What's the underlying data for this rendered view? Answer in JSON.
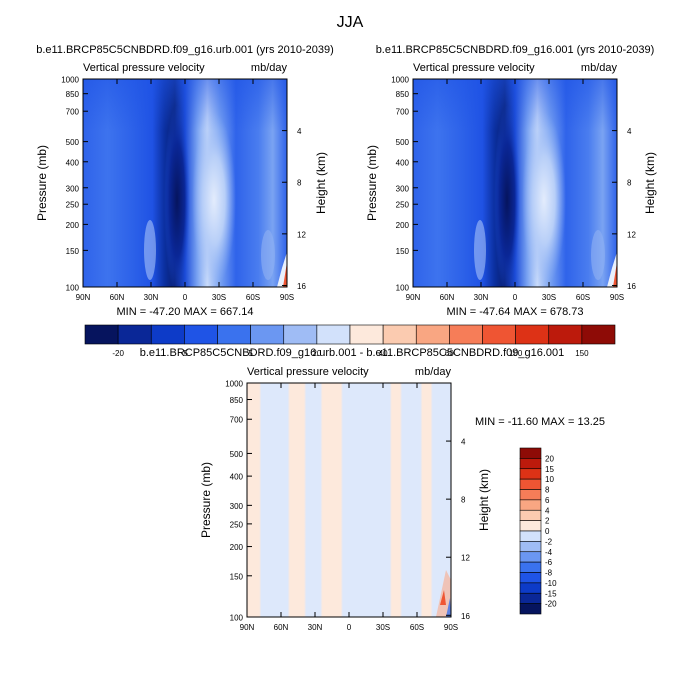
{
  "figure_title": "JJA",
  "panels": [
    {
      "title": "b.e11.BRCP85C5CNBDRD.f09_g16.urb.001 (yrs 2010-2039)",
      "left_string": "Vertical pressure velocity",
      "right_string": "mb/day",
      "stats": "MIN = -47.20  MAX = 667.14"
    },
    {
      "title": "b.e11.BRCP85C5CNBDRD.f09_g16.001 (yrs 2010-2039)",
      "left_string": "Vertical pressure velocity",
      "right_string": "mb/day",
      "stats": "MIN = -47.64  MAX = 678.73"
    },
    {
      "title": "b.e11.BRCP85C5CNBDRD.f09_g16.urb.001 - b.e11.BRCP85C5CNBDRD.f09_g16.001",
      "left_string": "Vertical pressure velocity",
      "right_string": "mb/day",
      "stats": "MIN = -11.60  MAX =  13.25"
    }
  ],
  "axes": {
    "ylabel": "Pressure (mb)",
    "ylabel_right": "Height (km)",
    "y_ticks": [
      100,
      150,
      200,
      250,
      300,
      400,
      500,
      700,
      850,
      1000
    ],
    "y_tick_labels": [
      "100",
      "150",
      "200",
      "250",
      "300",
      "400",
      "500",
      "700",
      "850",
      "1000"
    ],
    "x_tick_labels": [
      "90N",
      "60N",
      "30N",
      "0",
      "30S",
      "60S",
      "90S"
    ],
    "height_ticks": [
      4,
      8,
      12,
      16
    ],
    "height_tick_labels": [
      "4",
      "8",
      "12",
      "16"
    ]
  },
  "colorbar_top": {
    "labels": [
      "-20",
      "-5",
      "5",
      "20",
      "40",
      "60",
      "100",
      "150"
    ],
    "colors": [
      "#06145e",
      "#0a2797",
      "#0d3bc8",
      "#1f54e6",
      "#3a72ee",
      "#6b97f2",
      "#9fbcf5",
      "#d2e1fb",
      "#fde9dc",
      "#fbcbb0",
      "#f9a682",
      "#f67d58",
      "#ef5533",
      "#dd3216",
      "#bc1a0c",
      "#8e0b06"
    ]
  },
  "colorbar_diff": {
    "labels": [
      "20",
      "15",
      "10",
      "8",
      "6",
      "4",
      "2",
      "0",
      "-2",
      "-4",
      "-6",
      "-8",
      "-10",
      "-15",
      "-20"
    ],
    "colors": [
      "#8e0b06",
      "#bc1a0c",
      "#dd3216",
      "#ef5533",
      "#f67d58",
      "#f9a682",
      "#fbcbb0",
      "#fde9dc",
      "#d2e1fb",
      "#9fbcf5",
      "#6b97f2",
      "#3a72ee",
      "#1f54e6",
      "#0d3bc8",
      "#0a2797",
      "#06145e"
    ]
  },
  "chart_data": [
    {
      "type": "heatmap",
      "title": "b.e11.BRCP85C5CNBDRD.f09_g16.urb.001 (yrs 2010-2039)",
      "ylabel": "Pressure (mb)",
      "x_range": [
        "90N",
        "90S"
      ],
      "ylim": [
        1000,
        100
      ],
      "min": -47.2,
      "max": 667.14
    },
    {
      "type": "heatmap",
      "title": "b.e11.BRCP85C5CNBDRD.f09_g16.001 (yrs 2010-2039)",
      "ylabel": "Pressure (mb)",
      "x_range": [
        "90N",
        "90S"
      ],
      "ylim": [
        1000,
        100
      ],
      "min": -47.64,
      "max": 678.73
    },
    {
      "type": "heatmap",
      "title": "b.e11.BRCP85C5CNBDRD.f09_g16.urb.001 - b.e11.BRCP85C5CNBDRD.f09_g16.001",
      "ylabel": "Pressure (mb)",
      "x_range": [
        "90N",
        "90S"
      ],
      "ylim": [
        1000,
        100
      ],
      "min": -11.6,
      "max": 13.25
    }
  ]
}
